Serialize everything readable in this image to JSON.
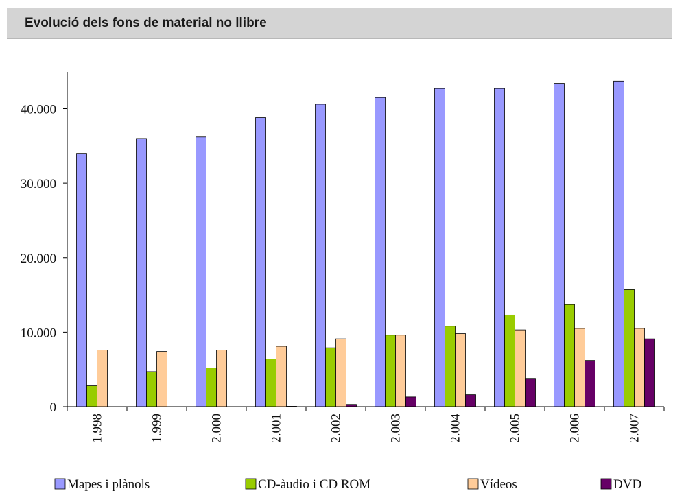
{
  "header": {
    "title": "Evolució dels fons de material no llibre"
  },
  "chart_data": {
    "type": "bar",
    "title": "Evolució dels fons de material no llibre",
    "categories": [
      "1.998",
      "1.999",
      "2.000",
      "2.001",
      "2.002",
      "2.003",
      "2.004",
      "2.005",
      "2.006",
      "2.007"
    ],
    "y_ticks": [
      "0",
      "10.000",
      "20.000",
      "30.000",
      "40.000"
    ],
    "ylim": [
      0,
      45000
    ],
    "grid": false,
    "legend_position": "bottom",
    "series": [
      {
        "name": "Mapes i plànols",
        "color": "#9999ff",
        "values": [
          34000,
          36000,
          36200,
          38800,
          40600,
          41500,
          42700,
          42700,
          43400,
          43700
        ]
      },
      {
        "name": "CD-àudio i CD ROM",
        "color": "#99cc00",
        "values": [
          2800,
          4700,
          5200,
          6400,
          7900,
          9600,
          10800,
          12300,
          13700,
          15700
        ]
      },
      {
        "name": "Vídeos",
        "color": "#ffcc99",
        "values": [
          7600,
          7400,
          7600,
          8100,
          9100,
          9600,
          9800,
          10300,
          10500,
          10500
        ]
      },
      {
        "name": "DVD",
        "color": "#660066",
        "values": [
          0,
          0,
          0,
          50,
          300,
          1300,
          1600,
          3800,
          6200,
          9100
        ]
      }
    ]
  }
}
